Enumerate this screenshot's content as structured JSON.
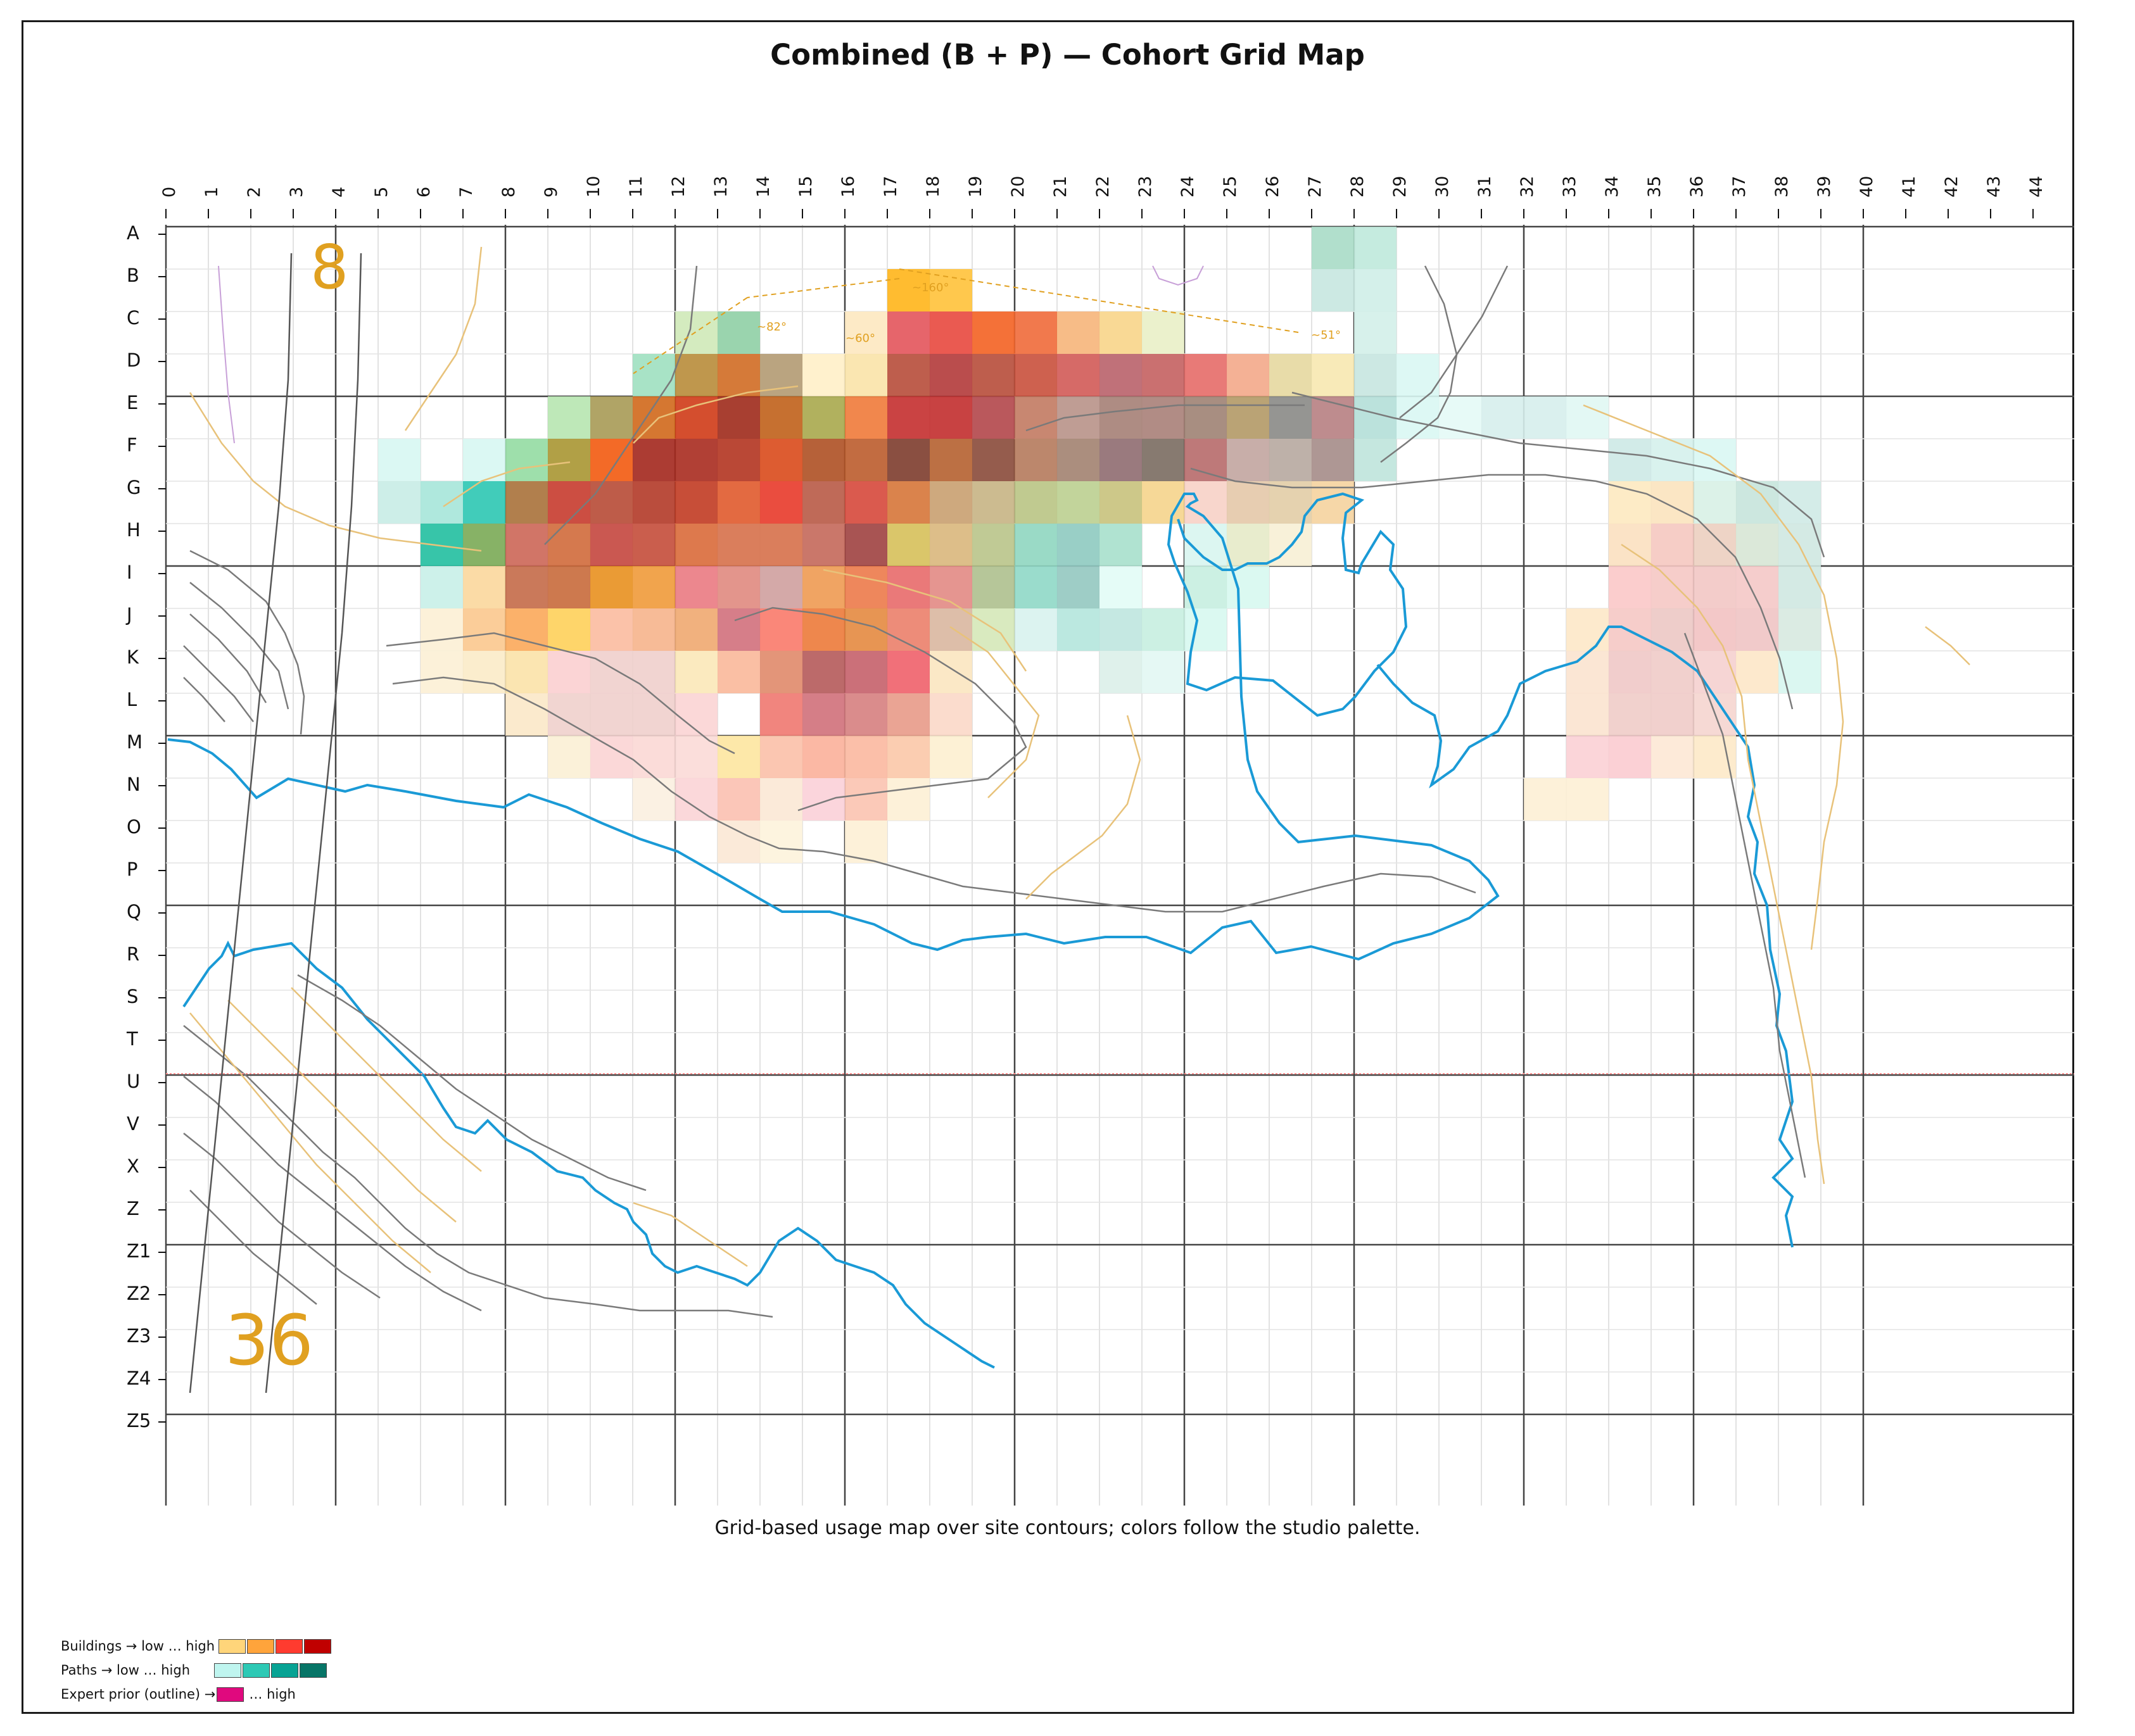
{
  "title": "Combined (B + P) — Cohort Grid Map",
  "caption": "Grid-based usage map over site contours; colors follow the studio palette.",
  "columns": [
    "0",
    "1",
    "2",
    "3",
    "4",
    "5",
    "6",
    "7",
    "8",
    "9",
    "10",
    "11",
    "12",
    "13",
    "14",
    "15",
    "16",
    "17",
    "18",
    "19",
    "20",
    "21",
    "22",
    "23",
    "24",
    "25",
    "26",
    "27",
    "28",
    "29",
    "30",
    "31",
    "32",
    "33",
    "34",
    "35",
    "36",
    "37",
    "38",
    "39",
    "40",
    "41",
    "42",
    "43",
    "44"
  ],
  "rows": [
    "A",
    "B",
    "C",
    "D",
    "E",
    "F",
    "G",
    "H",
    "I",
    "J",
    "K",
    "L",
    "M",
    "N",
    "O",
    "P",
    "Q",
    "R",
    "S",
    "T",
    "U",
    "V",
    "X",
    "Z",
    "Z1",
    "Z2",
    "Z3",
    "Z4",
    "Z5"
  ],
  "map_labels": {
    "top_left": "8",
    "bottom_left": "36"
  },
  "annotations": [
    "~160°",
    "~82°",
    "~60°",
    "~51°"
  ],
  "colors": {
    "buildings_scale": [
      "#ffd57a",
      "#ffa43b",
      "#ff3b2f",
      "#c00000"
    ],
    "paths_scale": [
      "#bff5ef",
      "#2dc9b5",
      "#07a394",
      "#077567"
    ],
    "expert_prior": "#e0097e",
    "contour_blue": "#1a9ad6",
    "contour_gray": "#6b6b6b",
    "contour_orange": "#e8c27a",
    "guide_red": "#ff8c8c"
  },
  "legend": {
    "buildings": {
      "label": "Buildings → low … high"
    },
    "paths": {
      "label": "Paths → low … high"
    },
    "expert": {
      "label": "Expert prior (outline) →",
      "suffix": "… high"
    }
  },
  "heat_cells": [
    {
      "cell": "A27",
      "color": "#a8dcc6"
    },
    {
      "cell": "A28",
      "color": "#bfe9dc"
    },
    {
      "cell": "B17",
      "color": "#ffb51a"
    },
    {
      "cell": "B18",
      "color": "#ffc23a"
    },
    {
      "cell": "B27",
      "color": "#c7e7e0"
    },
    {
      "cell": "B28",
      "color": "#cfeee8"
    },
    {
      "cell": "C12",
      "color": "#cfe9b8"
    },
    {
      "cell": "C13",
      "color": "#8fcfa5"
    },
    {
      "cell": "C16",
      "color": "#fde8c0"
    },
    {
      "cell": "C17",
      "color": "#e3545b"
    },
    {
      "cell": "C18",
      "color": "#e8483e"
    },
    {
      "cell": "C19",
      "color": "#f36222"
    },
    {
      "cell": "C20",
      "color": "#f06a3a"
    },
    {
      "cell": "C21",
      "color": "#f6b57a"
    },
    {
      "cell": "C22",
      "color": "#f8d58a"
    },
    {
      "cell": "C23",
      "color": "#e9f0c7"
    },
    {
      "cell": "C28",
      "color": "#d3efe9"
    },
    {
      "cell": "D11",
      "color": "#9fe0c0"
    },
    {
      "cell": "D12",
      "color": "#b88c3a"
    },
    {
      "cell": "D13",
      "color": "#d06b24"
    },
    {
      "cell": "D14",
      "color": "#b39a72"
    },
    {
      "cell": "D15",
      "color": "#fff0c8"
    },
    {
      "cell": "D16",
      "color": "#f9e3a8"
    },
    {
      "cell": "D17",
      "color": "#b74c3a"
    },
    {
      "cell": "D18",
      "color": "#b23a3a"
    },
    {
      "cell": "D19",
      "color": "#b74c3a"
    },
    {
      "cell": "D20",
      "color": "#c9503c"
    },
    {
      "cell": "D21",
      "color": "#d25a56"
    },
    {
      "cell": "D22",
      "color": "#b9626a"
    },
    {
      "cell": "D23",
      "color": "#c46060"
    },
    {
      "cell": "D24",
      "color": "#e56b68"
    },
    {
      "cell": "D25",
      "color": "#f3a98a"
    },
    {
      "cell": "D26",
      "color": "#e6d8a0"
    },
    {
      "cell": "D27",
      "color": "#f7e8b0"
    },
    {
      "cell": "D28",
      "color": "#c7e5e0"
    },
    {
      "cell": "D29",
      "color": "#d9f7f3"
    },
    {
      "cell": "E9",
      "color": "#b7e6b0"
    },
    {
      "cell": "E10",
      "color": "#a79a55"
    },
    {
      "cell": "E11",
      "color": "#d0681b"
    },
    {
      "cell": "E12",
      "color": "#cf3b17"
    },
    {
      "cell": "E13",
      "color": "#9e2a1b"
    },
    {
      "cell": "E14",
      "color": "#c0601a"
    },
    {
      "cell": "E15",
      "color": "#a8a84c"
    },
    {
      "cell": "E16",
      "color": "#f07a3a"
    },
    {
      "cell": "E17",
      "color": "#c42f2f"
    },
    {
      "cell": "E18",
      "color": "#c22e2e"
    },
    {
      "cell": "E19",
      "color": "#b2464a"
    },
    {
      "cell": "E20",
      "color": "#c27a62"
    },
    {
      "cell": "E21",
      "color": "#b89288"
    },
    {
      "cell": "E22",
      "color": "#a58075"
    },
    {
      "cell": "E23",
      "color": "#a87f78"
    },
    {
      "cell": "E24",
      "color": "#9f8273"
    },
    {
      "cell": "E25",
      "color": "#b39966"
    },
    {
      "cell": "E26",
      "color": "#8a8a86"
    },
    {
      "cell": "E27",
      "color": "#b77f82"
    },
    {
      "cell": "E28",
      "color": "#b4dfd8"
    },
    {
      "cell": "E29",
      "color": "#d9f7f3"
    },
    {
      "cell": "E30",
      "color": "#e4faf6"
    },
    {
      "cell": "E31",
      "color": "#d6eeec"
    },
    {
      "cell": "E32",
      "color": "#d6eeec"
    },
    {
      "cell": "E33",
      "color": "#e0f7f3"
    },
    {
      "cell": "F5",
      "color": "#d7f7f2"
    },
    {
      "cell": "F7",
      "color": "#d7f7f2"
    },
    {
      "cell": "F8",
      "color": "#93dba2"
    },
    {
      "cell": "F9",
      "color": "#a89632"
    },
    {
      "cell": "F10",
      "color": "#f25a10"
    },
    {
      "cell": "F11",
      "color": "#a3271d"
    },
    {
      "cell": "F12",
      "color": "#a82b1f"
    },
    {
      "cell": "F13",
      "color": "#b33420"
    },
    {
      "cell": "F14",
      "color": "#d94a1b"
    },
    {
      "cell": "F15",
      "color": "#ae5024"
    },
    {
      "cell": "F16",
      "color": "#bb5c2c"
    },
    {
      "cell": "F17",
      "color": "#7d3c2c"
    },
    {
      "cell": "F18",
      "color": "#b56030"
    },
    {
      "cell": "F19",
      "color": "#8a4a3a"
    },
    {
      "cell": "F20",
      "color": "#b57a5c"
    },
    {
      "cell": "F21",
      "color": "#a28270"
    },
    {
      "cell": "F22",
      "color": "#8f6c70"
    },
    {
      "cell": "F23",
      "color": "#7a6c60"
    },
    {
      "cell": "F24",
      "color": "#b76a6a"
    },
    {
      "cell": "F25",
      "color": "#c2a5a0"
    },
    {
      "cell": "F26",
      "color": "#b7a8a0"
    },
    {
      "cell": "F27",
      "color": "#a58c88"
    },
    {
      "cell": "F28",
      "color": "#bfe4dc"
    },
    {
      "cell": "F34",
      "color": "#cde9e5"
    },
    {
      "cell": "F35",
      "color": "#d5f1ec"
    },
    {
      "cell": "F36",
      "color": "#d9f7f3"
    },
    {
      "cell": "G5",
      "color": "#c8ece5"
    },
    {
      "cell": "G6",
      "color": "#a6e5d9"
    },
    {
      "cell": "G7",
      "color": "#2cc7b3"
    },
    {
      "cell": "G8",
      "color": "#a8713a"
    },
    {
      "cell": "G9",
      "color": "#c73b2e"
    },
    {
      "cell": "G10",
      "color": "#b74a35"
    },
    {
      "cell": "G11",
      "color": "#b23a28"
    },
    {
      "cell": "G12",
      "color": "#c13b22"
    },
    {
      "cell": "G13",
      "color": "#e05a2c"
    },
    {
      "cell": "G14",
      "color": "#e83a2a"
    },
    {
      "cell": "G15",
      "color": "#b85a46"
    },
    {
      "cell": "G16",
      "color": "#d6483b"
    },
    {
      "cell": "G17",
      "color": "#d67538"
    },
    {
      "cell": "G18",
      "color": "#c9a070"
    },
    {
      "cell": "G19",
      "color": "#c6b484"
    },
    {
      "cell": "G20",
      "color": "#b9c484"
    },
    {
      "cell": "G21",
      "color": "#bbcf90"
    },
    {
      "cell": "G22",
      "color": "#c8c27c"
    },
    {
      "cell": "G23",
      "color": "#f5d48c"
    },
    {
      "cell": "G24",
      "color": "#f7d2c7"
    },
    {
      "cell": "G25",
      "color": "#e4c8a8"
    },
    {
      "cell": "G26",
      "color": "#e2cda6"
    },
    {
      "cell": "G27",
      "color": "#f5d39e"
    },
    {
      "cell": "G34",
      "color": "#fde9c0"
    },
    {
      "cell": "G35",
      "color": "#fbe3be"
    },
    {
      "cell": "G36",
      "color": "#d8f1e5"
    },
    {
      "cell": "G37",
      "color": "#c6e4dc"
    },
    {
      "cell": "G38",
      "color": "#cfeae5"
    },
    {
      "cell": "H6",
      "color": "#21bfa0"
    },
    {
      "cell": "H7",
      "color": "#7aaa55"
    },
    {
      "cell": "H8",
      "color": "#cc6656"
    },
    {
      "cell": "H9",
      "color": "#d06a3b"
    },
    {
      "cell": "H10",
      "color": "#c4463e"
    },
    {
      "cell": "H11",
      "color": "#c44d3a"
    },
    {
      "cell": "H12",
      "color": "#d96a3a"
    },
    {
      "cell": "H13",
      "color": "#d6704a"
    },
    {
      "cell": "H14",
      "color": "#d6704a"
    },
    {
      "cell": "H15",
      "color": "#c4685a"
    },
    {
      "cell": "H16",
      "color": "#9e4140"
    },
    {
      "cell": "H17",
      "color": "#d6c05a"
    },
    {
      "cell": "H18",
      "color": "#d9b77c"
    },
    {
      "cell": "H19",
      "color": "#b9c48a"
    },
    {
      "cell": "H20",
      "color": "#8fd6c0"
    },
    {
      "cell": "H21",
      "color": "#8ecac0"
    },
    {
      "cell": "H22",
      "color": "#a7e0cc"
    },
    {
      "cell": "H24",
      "color": "#d8f5ef"
    },
    {
      "cell": "H25",
      "color": "#e5eac8"
    },
    {
      "cell": "H26",
      "color": "#f7f0d5"
    },
    {
      "cell": "H34",
      "color": "#fbe0c0"
    },
    {
      "cell": "H35",
      "color": "#f5c8c0"
    },
    {
      "cell": "H36",
      "color": "#eccfc0"
    },
    {
      "cell": "H37",
      "color": "#d7e6d5"
    },
    {
      "cell": "H38",
      "color": "#cfe8e1"
    },
    {
      "cell": "I6",
      "color": "#c8f0e8"
    },
    {
      "cell": "I7",
      "color": "#fbd79c"
    },
    {
      "cell": "I8",
      "color": "#c46a48"
    },
    {
      "cell": "I9",
      "color": "#c86a3b"
    },
    {
      "cell": "I10",
      "color": "#e8901f"
    },
    {
      "cell": "I11",
      "color": "#ef9a3a"
    },
    {
      "cell": "I12",
      "color": "#ea7a82"
    },
    {
      "cell": "I13",
      "color": "#e08a80"
    },
    {
      "cell": "I14",
      "color": "#cfa09e"
    },
    {
      "cell": "I15",
      "color": "#ee9a52"
    },
    {
      "cell": "I16",
      "color": "#ec7a4a"
    },
    {
      "cell": "I17",
      "color": "#e86a6a"
    },
    {
      "cell": "I18",
      "color": "#e28a84"
    },
    {
      "cell": "I19",
      "color": "#aec08e"
    },
    {
      "cell": "I20",
      "color": "#8fd8c6"
    },
    {
      "cell": "I21",
      "color": "#94c8c0"
    },
    {
      "cell": "I22",
      "color": "#e2fcf6"
    },
    {
      "cell": "I24",
      "color": "#c7eee0"
    },
    {
      "cell": "I25",
      "color": "#d7f8f0"
    },
    {
      "cell": "I34",
      "color": "#fbc8c8"
    },
    {
      "cell": "I35",
      "color": "#f5c8c4"
    },
    {
      "cell": "I36",
      "color": "#f2c6c4"
    },
    {
      "cell": "I37",
      "color": "#f4c8c6"
    },
    {
      "cell": "I38",
      "color": "#cfe8e1"
    },
    {
      "cell": "J6",
      "color": "#fcefd5"
    },
    {
      "cell": "J7",
      "color": "#fbc88e"
    },
    {
      "cell": "J8",
      "color": "#fba85a"
    },
    {
      "cell": "J9",
      "color": "#fed05a"
    },
    {
      "cell": "J10",
      "color": "#fbbba0"
    },
    {
      "cell": "J11",
      "color": "#f6b48c"
    },
    {
      "cell": "J12",
      "color": "#f0a870"
    },
    {
      "cell": "J13",
      "color": "#d2707c"
    },
    {
      "cell": "J14",
      "color": "#fa7a6a"
    },
    {
      "cell": "J15",
      "color": "#ec7a3a"
    },
    {
      "cell": "J16",
      "color": "#e48a40"
    },
    {
      "cell": "J17",
      "color": "#eb806a"
    },
    {
      "cell": "J18",
      "color": "#d9b7a0"
    },
    {
      "cell": "J19",
      "color": "#d5e8b8"
    },
    {
      "cell": "J20",
      "color": "#d8f2ee"
    },
    {
      "cell": "J21",
      "color": "#b4e6dd"
    },
    {
      "cell": "J22",
      "color": "#bfe6df"
    },
    {
      "cell": "J23",
      "color": "#c7eee0"
    },
    {
      "cell": "J24",
      "color": "#d7f8f0"
    },
    {
      "cell": "J33",
      "color": "#fde8c8"
    },
    {
      "cell": "J34",
      "color": "#f5c8c4"
    },
    {
      "cell": "J35",
      "color": "#ecc8c4"
    },
    {
      "cell": "J36",
      "color": "#f2c2c2"
    },
    {
      "cell": "J37",
      "color": "#f0c4c4"
    },
    {
      "cell": "J38",
      "color": "#d7e9e0"
    },
    {
      "cell": "K6",
      "color": "#fcefd5"
    },
    {
      "cell": "K7",
      "color": "#fbebc8"
    },
    {
      "cell": "K8",
      "color": "#fbe2a8"
    },
    {
      "cell": "K9",
      "color": "#fbcfd0"
    },
    {
      "cell": "K10",
      "color": "#efcfcc"
    },
    {
      "cell": "K11",
      "color": "#efcfcc"
    },
    {
      "cell": "K12",
      "color": "#fbe8b8"
    },
    {
      "cell": "K13",
      "color": "#fab89a"
    },
    {
      "cell": "K14",
      "color": "#e08a6a"
    },
    {
      "cell": "K15",
      "color": "#b55a5a"
    },
    {
      "cell": "K16",
      "color": "#c5606a"
    },
    {
      "cell": "K17",
      "color": "#f0606a"
    },
    {
      "cell": "K18",
      "color": "#fbe5c0"
    },
    {
      "cell": "K22",
      "color": "#dcefe9"
    },
    {
      "cell": "K23",
      "color": "#e2f7f3"
    },
    {
      "cell": "K33",
      "color": "#fbe3cf"
    },
    {
      "cell": "K34",
      "color": "#f0c8c6"
    },
    {
      "cell": "K35",
      "color": "#f0cbc8"
    },
    {
      "cell": "K36",
      "color": "#f5d0cf"
    },
    {
      "cell": "K37",
      "color": "#fde7c8"
    },
    {
      "cell": "K38",
      "color": "#d7f6f0"
    },
    {
      "cell": "L8",
      "color": "#fbe8c8"
    },
    {
      "cell": "L9",
      "color": "#f0d0cc"
    },
    {
      "cell": "L10",
      "color": "#efcfcc"
    },
    {
      "cell": "L11",
      "color": "#efcfcc"
    },
    {
      "cell": "L12",
      "color": "#fbd4d4"
    },
    {
      "cell": "L14",
      "color": "#f07870"
    },
    {
      "cell": "L15",
      "color": "#d0707a"
    },
    {
      "cell": "L16",
      "color": "#d68080"
    },
    {
      "cell": "L17",
      "color": "#e89a88"
    },
    {
      "cell": "L18",
      "color": "#fbd8c8"
    },
    {
      "cell": "L33",
      "color": "#fbe3cf"
    },
    {
      "cell": "L34",
      "color": "#f0ccc8"
    },
    {
      "cell": "L35",
      "color": "#f0cbc8"
    },
    {
      "cell": "L36",
      "color": "#f5d5cf"
    },
    {
      "cell": "M9",
      "color": "#fbf0d5"
    },
    {
      "cell": "M10",
      "color": "#fbd4d4"
    },
    {
      "cell": "M11",
      "color": "#fbd8d5"
    },
    {
      "cell": "M12",
      "color": "#fbdad7"
    },
    {
      "cell": "M13",
      "color": "#fde5a0"
    },
    {
      "cell": "M14",
      "color": "#fbc0a8"
    },
    {
      "cell": "M15",
      "color": "#fbb09a"
    },
    {
      "cell": "M16",
      "color": "#fbb8a0"
    },
    {
      "cell": "M17",
      "color": "#fbc8a8"
    },
    {
      "cell": "M18",
      "color": "#fdefd0"
    },
    {
      "cell": "M33",
      "color": "#fbd0d5"
    },
    {
      "cell": "M34",
      "color": "#fbcbd0"
    },
    {
      "cell": "M35",
      "color": "#fde8d5"
    },
    {
      "cell": "M36",
      "color": "#fde9c8"
    },
    {
      "cell": "N11",
      "color": "#fbf0e0"
    },
    {
      "cell": "N12",
      "color": "#fbd4d6"
    },
    {
      "cell": "N13",
      "color": "#fbc0b0"
    },
    {
      "cell": "N14",
      "color": "#fbe8d5"
    },
    {
      "cell": "N15",
      "color": "#fbd0d8"
    },
    {
      "cell": "N16",
      "color": "#fbc3b0"
    },
    {
      "cell": "N17",
      "color": "#fdefd5"
    },
    {
      "cell": "N32",
      "color": "#fdf0d5"
    },
    {
      "cell": "N33",
      "color": "#fdf0d5"
    },
    {
      "cell": "O13",
      "color": "#fbe8d5"
    },
    {
      "cell": "O14",
      "color": "#fdf3dc"
    },
    {
      "cell": "O16",
      "color": "#fdf0d5"
    }
  ]
}
